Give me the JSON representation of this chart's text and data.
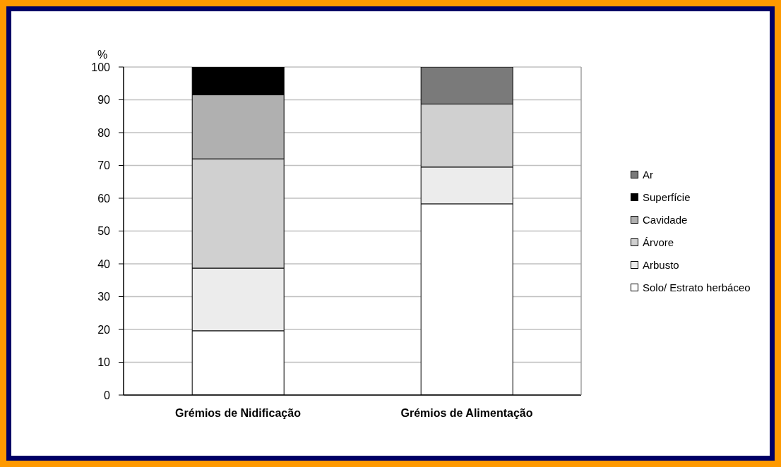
{
  "chart_data": {
    "type": "bar",
    "ylabel": "%",
    "categories": [
      "Grémios de Nidificação",
      "Grémios de Alimentação"
    ],
    "series": [
      {
        "name": "Solo/ Estrato herbáceo",
        "color": "#ffffff",
        "values": [
          19.6,
          58.3
        ]
      },
      {
        "name": "Arbusto",
        "color": "#ececec",
        "values": [
          19.1,
          11.2
        ]
      },
      {
        "name": "Árvore",
        "color": "#d0d0d0",
        "values": [
          33.3,
          19.2
        ]
      },
      {
        "name": "Cavidade",
        "color": "#b0b0b0",
        "values": [
          19.5,
          null
        ]
      },
      {
        "name": "Superfície",
        "color": "#000000",
        "values": [
          8.5,
          null
        ]
      },
      {
        "name": "Ar",
        "color": "#7a7a7a",
        "values": [
          null,
          11.3
        ]
      }
    ],
    "stacked": true,
    "ylim": [
      0,
      100
    ],
    "yticks": [
      0,
      10,
      20,
      30,
      40,
      50,
      60,
      70,
      80,
      90,
      100
    ],
    "grid": "y",
    "legend": "right"
  }
}
